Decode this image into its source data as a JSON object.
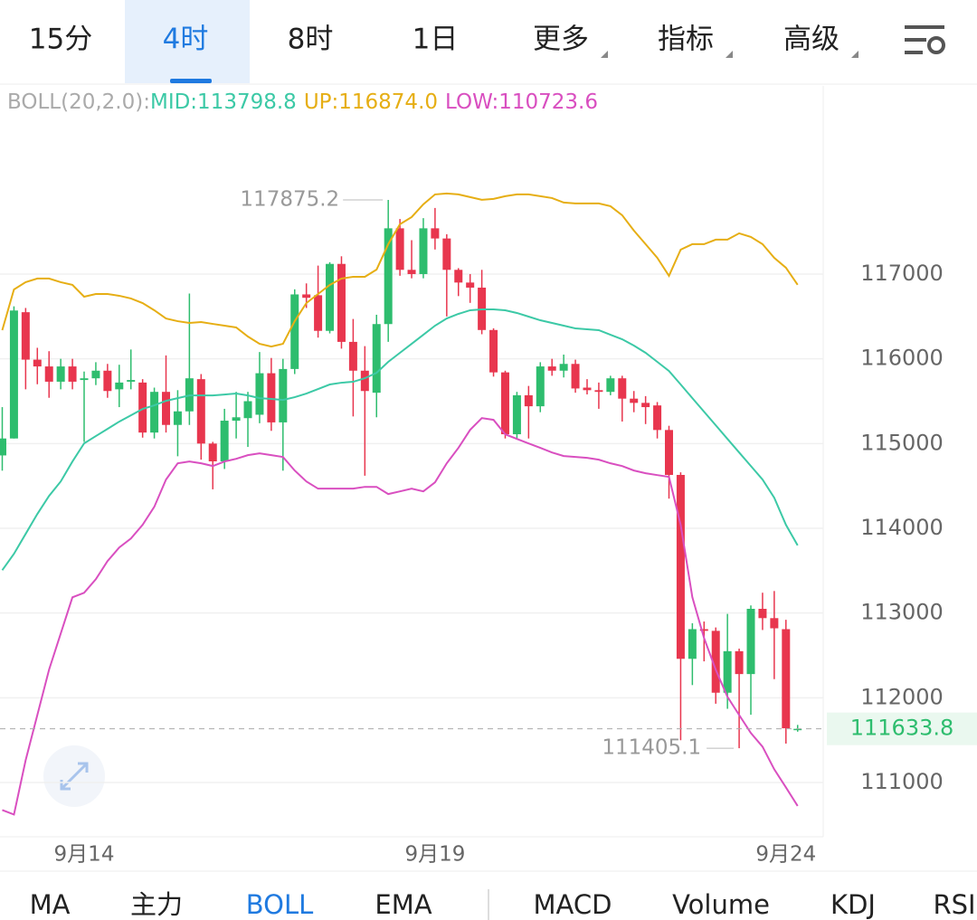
{
  "tabs": [
    "15分",
    "4时",
    "8时",
    "1日",
    "更多",
    "指标",
    "高级"
  ],
  "active_tab": 1,
  "indicator_tabs": [
    "MA",
    "主力",
    "BOLL",
    "EMA",
    "MACD",
    "Volume",
    "KDJ",
    "RSI"
  ],
  "active_indicator": 2,
  "chart_data": {
    "type": "candlestick",
    "indicator": "BOLL(20,2.0):",
    "categories": [
      null,
      null,
      null,
      null,
      null,
      null,
      null,
      "9月14",
      null,
      null,
      null,
      null,
      null,
      null,
      null,
      null,
      null,
      null,
      null,
      null,
      null,
      null,
      null,
      null,
      null,
      null,
      null,
      null,
      null,
      null,
      null,
      null,
      null,
      null,
      null,
      null,
      null,
      "9月19",
      null,
      null,
      null,
      null,
      null,
      null,
      null,
      null,
      null,
      null,
      null,
      null,
      null,
      null,
      null,
      null,
      null,
      null,
      null,
      null,
      null,
      null,
      null,
      null,
      null,
      null,
      null,
      null,
      null,
      "9月24",
      null
    ],
    "open": [
      114860,
      115060,
      116550,
      115990,
      115910,
      115730,
      115910,
      115750,
      115770,
      115860,
      115640,
      115730,
      115720,
      115130,
      115610,
      115220,
      115380,
      115760,
      115000,
      114790,
      115270,
      115300,
      115340,
      115830,
      115250,
      115880,
      116760,
      116750,
      116330,
      117120,
      116200,
      115860,
      115600,
      116410,
      117540,
      117050,
      117000,
      117540,
      117420,
      117050,
      116900,
      116840,
      116340,
      115840,
      115110,
      115570,
      115440,
      115910,
      115860,
      115940,
      115660,
      115630,
      115610,
      115770,
      115530,
      115480,
      115450,
      115160,
      114630,
      112460,
      112810,
      112790,
      112060,
      112550,
      112280,
      113050,
      112940,
      112810,
      111620
    ],
    "high": [
      115430,
      116620,
      116600,
      116130,
      116090,
      116000,
      116000,
      115850,
      115960,
      115940,
      115930,
      116110,
      115760,
      115660,
      116040,
      115630,
      116770,
      115820,
      115020,
      115410,
      115610,
      115610,
      116080,
      116010,
      116000,
      116820,
      116890,
      117100,
      117140,
      117210,
      116470,
      116150,
      116520,
      117875.2,
      117650,
      117400,
      117660,
      117780,
      117470,
      117070,
      117000,
      117050,
      116360,
      115860,
      115610,
      115680,
      115960,
      116000,
      116050,
      115990,
      115760,
      115720,
      115800,
      115800,
      115620,
      115560,
      115490,
      115210,
      114660,
      112880,
      112900,
      112830,
      112990,
      112580,
      113090,
      113240,
      113260,
      112920,
      111680
    ],
    "low": [
      114680,
      115060,
      115640,
      115700,
      115540,
      115640,
      115640,
      115020,
      115690,
      115540,
      115430,
      115640,
      115070,
      115060,
      115130,
      114850,
      115220,
      114810,
      114460,
      114700,
      115060,
      114960,
      115240,
      115150,
      114680,
      115820,
      116600,
      116250,
      116300,
      116120,
      115320,
      114620,
      115310,
      116200,
      116980,
      116950,
      116950,
      117290,
      116500,
      116740,
      116660,
      116290,
      115790,
      115060,
      115050,
      115060,
      115370,
      115800,
      115780,
      115600,
      115580,
      115410,
      115570,
      115260,
      115370,
      115230,
      115060,
      114350,
      111500,
      112150,
      112430,
      111930,
      111870,
      111405.1,
      111800,
      112800,
      112220,
      111460,
      111600
    ],
    "close": [
      115060,
      116570,
      115990,
      115910,
      115730,
      115910,
      115730,
      115770,
      115860,
      115620,
      115720,
      115750,
      115130,
      115610,
      115220,
      115380,
      115770,
      115000,
      114790,
      115270,
      115310,
      115500,
      115830,
      115250,
      115880,
      116760,
      116720,
      116330,
      117120,
      116200,
      115860,
      115620,
      116410,
      117540,
      117050,
      117000,
      117540,
      117420,
      117050,
      116900,
      116840,
      116340,
      115840,
      115110,
      115570,
      115440,
      115910,
      115860,
      115940,
      115650,
      115630,
      115610,
      115770,
      115530,
      115480,
      115430,
      115160,
      114630,
      112460,
      112810,
      112790,
      112060,
      112550,
      112280,
      113050,
      112940,
      112820,
      111640,
      111633.8
    ],
    "up_color": "#2ebd6e",
    "down_color": "#e8364e",
    "series": [
      {
        "label": "MID:113798.8",
        "color": "#3cc9a6",
        "values": [
          113506,
          113699,
          113934,
          114169,
          114382,
          114553,
          114788,
          115002,
          115088,
          115173,
          115259,
          115333,
          115408,
          115451,
          115504,
          115536,
          115568,
          115568,
          115568,
          115579,
          115590,
          115568,
          115536,
          115526,
          115515,
          115547,
          115590,
          115643,
          115697,
          115718,
          115729,
          115771,
          115835,
          115964,
          116071,
          116177,
          116284,
          116391,
          116476,
          116530,
          116573,
          116583,
          116583,
          116573,
          116541,
          116498,
          116455,
          116423,
          116391,
          116359,
          116348,
          116338,
          116284,
          116231,
          116156,
          116071,
          115964,
          115857,
          115697,
          115536,
          115376,
          115216,
          115055,
          114895,
          114735,
          114575,
          114361,
          114041,
          113798.8
        ]
      },
      {
        "label": "UP:116874.0",
        "color": "#e6ae14",
        "values": [
          116338,
          116818,
          116904,
          116947,
          116947,
          116904,
          116872,
          116733,
          116765,
          116765,
          116744,
          116712,
          116658,
          116573,
          116476,
          116444,
          116423,
          116434,
          116412,
          116391,
          116370,
          116263,
          116177,
          116145,
          116177,
          116444,
          116658,
          116765,
          116872,
          116947,
          116968,
          116968,
          117053,
          117353,
          117588,
          117673,
          117823,
          117940,
          117951,
          117940,
          117908,
          117876,
          117887,
          117919,
          117940,
          117940,
          117919,
          117897,
          117844,
          117833,
          117833,
          117833,
          117801,
          117694,
          117513,
          117353,
          117192,
          116979,
          117288,
          117353,
          117353,
          117406,
          117406,
          117481,
          117438,
          117353,
          117192,
          117075,
          116874
        ]
      },
      {
        "label": "LOW:110723.6",
        "color": "#d94fc0",
        "values": [
          110675,
          110622,
          111263,
          111797,
          112331,
          112758,
          113186,
          113239,
          113399,
          113613,
          113773,
          113880,
          114041,
          114254,
          114575,
          114767,
          114788,
          114767,
          114735,
          114788,
          114820,
          114863,
          114885,
          114863,
          114842,
          114682,
          114553,
          114468,
          114468,
          114468,
          114468,
          114489,
          114489,
          114404,
          114436,
          114468,
          114436,
          114543,
          114767,
          114949,
          115162,
          115301,
          115280,
          115109,
          115055,
          115002,
          114949,
          114895,
          114853,
          114842,
          114831,
          114810,
          114767,
          114735,
          114682,
          114650,
          114628,
          114607,
          114041,
          113186,
          112705,
          112331,
          112011,
          111797,
          111584,
          111423,
          111156,
          110942,
          110723.6
        ]
      }
    ],
    "ylim": [
      110360,
      119220
    ],
    "yticks": [
      111000,
      112000,
      113000,
      114000,
      115000,
      116000,
      117000
    ],
    "grid": true
  }
}
